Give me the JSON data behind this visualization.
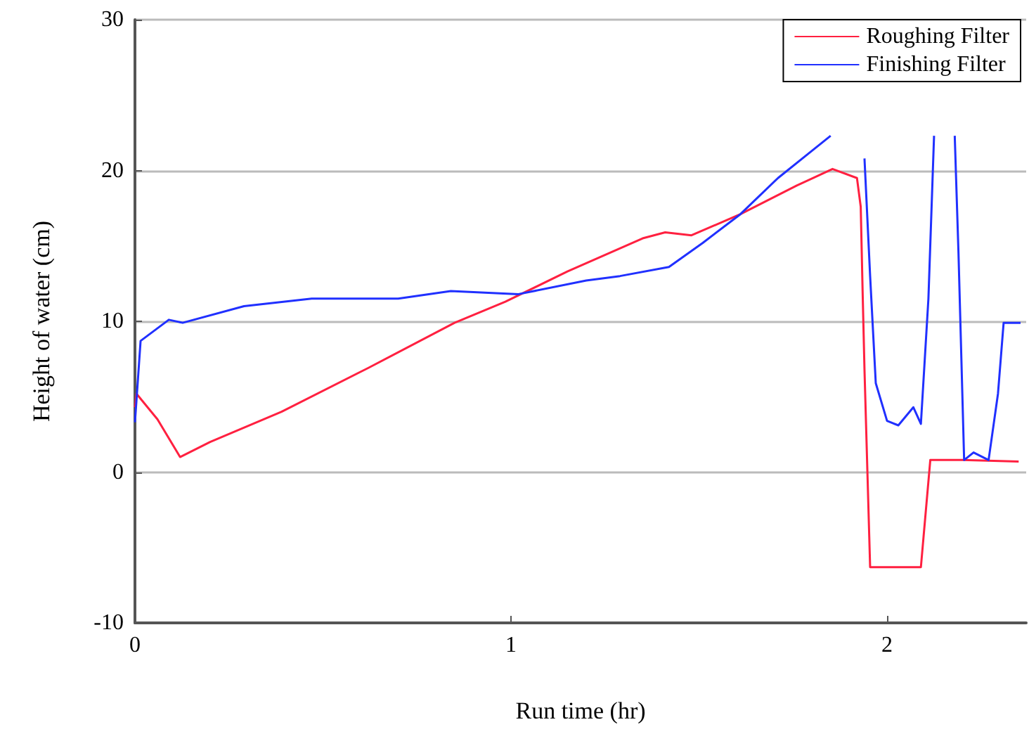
{
  "chart_data": {
    "type": "line",
    "xlabel": "Run time (hr)",
    "ylabel": "Height of water (cm)",
    "xlim": [
      0,
      2.37
    ],
    "xticks": [
      0,
      1,
      2
    ],
    "ylim": [
      -10,
      30
    ],
    "yticks": [
      -10,
      0,
      10,
      20,
      30
    ],
    "grid": "y",
    "legend": "top right",
    "marker": "none",
    "line_style": "solid",
    "series": [
      {
        "name": "Roughing Filter",
        "color": "#ff2040",
        "x": [
          0,
          0.004,
          0.06,
          0.12,
          0.2,
          0.39,
          0.62,
          0.85,
          0.985,
          1.15,
          1.35,
          1.41,
          1.48,
          1.61,
          1.76,
          1.855,
          1.92,
          1.93,
          1.935,
          1.94,
          1.955,
          2.09,
          2.115,
          2.2,
          2.35
        ],
        "values": [
          4.3,
          5.2,
          3.5,
          1.0,
          2.0,
          4.0,
          6.9,
          9.9,
          11.3,
          13.3,
          15.5,
          15.9,
          15.7,
          17.1,
          19.0,
          20.1,
          19.5,
          17.6,
          12,
          6.8,
          -6.3,
          -6.3,
          0.8,
          0.8,
          0.7
        ]
      },
      {
        "name": "Finishing Filter",
        "color": "#2030ff",
        "x": [
          0,
          0.015,
          0.09,
          0.127,
          0.29,
          0.47,
          0.7,
          0.84,
          1.02,
          1.2,
          1.29,
          1.42,
          1.51,
          1.61,
          1.71,
          1.79,
          1.85,
          1.89,
          1.94,
          1.955,
          1.97,
          2.0,
          2.03,
          2.07,
          2.09,
          2.11,
          2.125,
          2.15,
          2.18,
          2.19,
          2.205,
          2.23,
          2.27,
          2.295,
          2.31,
          2.355
        ],
        "values": [
          3.3,
          8.7,
          10.1,
          9.9,
          11.0,
          11.5,
          11.5,
          12.0,
          11.8,
          12.7,
          13.0,
          13.6,
          15.2,
          17.1,
          19.5,
          21.1,
          22.3,
          null,
          20.8,
          13,
          5.9,
          3.4,
          3.1,
          4.3,
          3.2,
          11.5,
          22.3,
          null,
          22.3,
          14.5,
          0.8,
          1.3,
          0.8,
          5.2,
          9.9,
          9.9
        ]
      }
    ]
  }
}
